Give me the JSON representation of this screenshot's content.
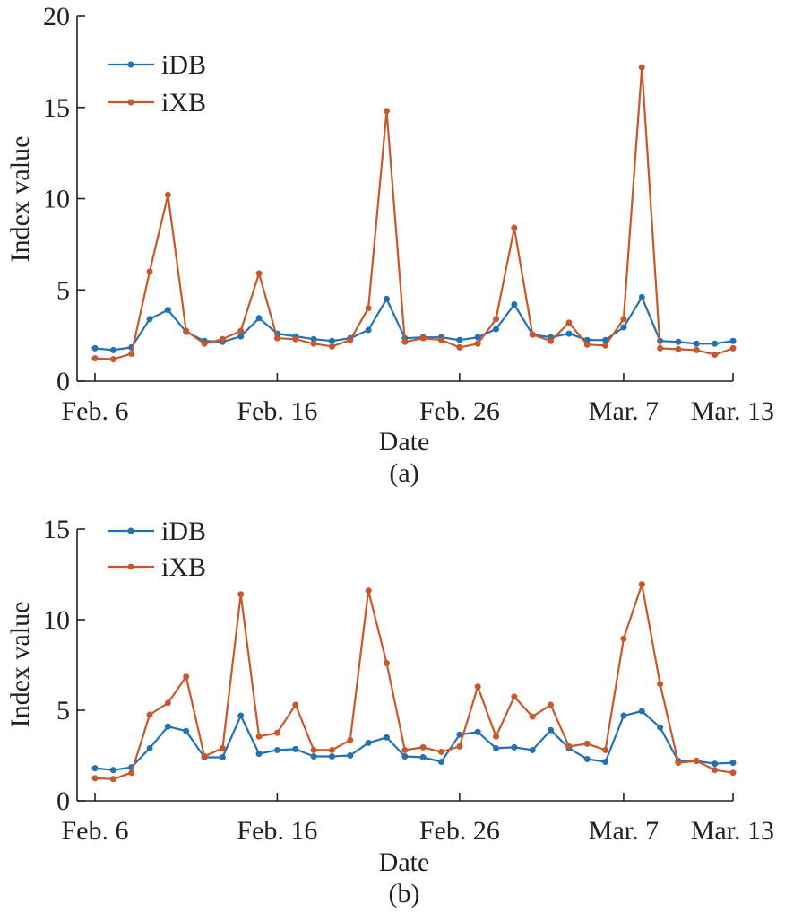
{
  "colors": {
    "iDB": "#2271b3",
    "iXB": "#c8582b",
    "axis": "#231f20"
  },
  "chart_data": [
    {
      "type": "line",
      "caption": "(a)",
      "xlabel": "Date",
      "ylabel": "Index value",
      "x_tick_labels": [
        "Feb. 6",
        "Feb. 16",
        "Feb. 26",
        "Mar. 7",
        "Mar. 13"
      ],
      "x_tick_days": [
        0,
        10,
        20,
        29,
        35
      ],
      "ylim": [
        0,
        20
      ],
      "y_ticks": [
        0,
        5,
        10,
        15,
        20
      ],
      "legend": "top-left",
      "grid": false,
      "x_days": [
        0,
        1,
        2,
        3,
        4,
        5,
        6,
        7,
        8,
        9,
        10,
        11,
        12,
        13,
        14,
        15,
        16,
        17,
        18,
        19,
        20,
        21,
        22,
        23,
        24,
        25,
        26,
        27,
        28,
        29,
        30,
        31,
        32,
        33,
        34,
        35
      ],
      "series": [
        {
          "name": "iDB",
          "values": [
            1.8,
            1.7,
            1.85,
            3.4,
            3.9,
            2.7,
            2.2,
            2.15,
            2.45,
            3.45,
            2.6,
            2.45,
            2.3,
            2.2,
            2.35,
            2.8,
            4.5,
            2.35,
            2.4,
            2.4,
            2.25,
            2.4,
            2.85,
            4.2,
            2.55,
            2.4,
            2.6,
            2.25,
            2.25,
            2.95,
            4.6,
            2.2,
            2.15,
            2.05,
            2.05,
            2.2
          ]
        },
        {
          "name": "iXB",
          "values": [
            1.25,
            1.2,
            1.5,
            6.0,
            10.2,
            2.75,
            2.05,
            2.3,
            2.75,
            5.9,
            2.35,
            2.3,
            2.05,
            1.9,
            2.25,
            4.0,
            14.8,
            2.15,
            2.35,
            2.25,
            1.85,
            2.05,
            3.4,
            8.4,
            2.55,
            2.2,
            3.2,
            2.0,
            1.95,
            3.4,
            17.2,
            1.8,
            1.75,
            1.7,
            1.45,
            1.8
          ]
        }
      ]
    },
    {
      "type": "line",
      "caption": "(b)",
      "xlabel": "Date",
      "ylabel": "Index value",
      "x_tick_labels": [
        "Feb. 6",
        "Feb. 16",
        "Feb. 26",
        "Mar. 7",
        "Mar. 13"
      ],
      "x_tick_days": [
        0,
        10,
        20,
        29,
        35
      ],
      "ylim": [
        0,
        15
      ],
      "y_ticks": [
        0,
        5,
        10,
        15
      ],
      "legend": "top-left",
      "grid": false,
      "x_days": [
        0,
        1,
        2,
        3,
        4,
        5,
        6,
        7,
        8,
        9,
        10,
        11,
        12,
        13,
        14,
        15,
        16,
        17,
        18,
        19,
        20,
        21,
        22,
        23,
        24,
        25,
        26,
        27,
        28,
        29,
        30,
        31,
        32,
        33,
        34,
        35
      ],
      "series": [
        {
          "name": "iDB",
          "values": [
            1.8,
            1.7,
            1.85,
            2.9,
            4.1,
            3.85,
            2.4,
            2.4,
            4.7,
            2.6,
            2.8,
            2.85,
            2.45,
            2.45,
            2.5,
            3.2,
            3.5,
            2.45,
            2.4,
            2.15,
            3.65,
            3.8,
            2.9,
            2.95,
            2.8,
            3.9,
            2.9,
            2.3,
            2.15,
            4.7,
            4.95,
            4.05,
            2.2,
            2.2,
            2.05,
            2.1
          ]
        },
        {
          "name": "iXB",
          "values": [
            1.25,
            1.2,
            1.55,
            4.75,
            5.4,
            6.85,
            2.45,
            2.9,
            11.4,
            3.55,
            3.75,
            5.3,
            2.8,
            2.8,
            3.35,
            11.6,
            7.6,
            2.8,
            2.95,
            2.7,
            3.0,
            6.3,
            3.55,
            5.75,
            4.65,
            5.3,
            3.0,
            3.15,
            2.8,
            8.95,
            11.95,
            6.45,
            2.1,
            2.2,
            1.7,
            1.55
          ]
        }
      ]
    }
  ]
}
